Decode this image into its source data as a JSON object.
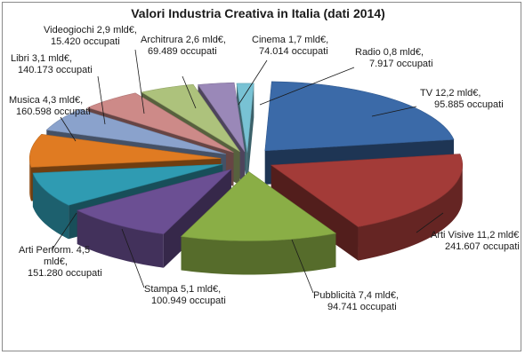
{
  "chart_data": {
    "type": "pie",
    "title": "Valori Industria Creativa in Italia (dati 2014)",
    "slices": [
      {
        "name": "TV",
        "value": 12.2,
        "value_text": "12,2 mld€,",
        "employees": "95.885 occupati",
        "color": "#3b6aa8"
      },
      {
        "name": "Arti Visive",
        "value": 11.2,
        "value_text": "11,2 mld€",
        "employees": "241.607 occupati",
        "color": "#a33b38"
      },
      {
        "name": "Pubblicità",
        "value": 7.4,
        "value_text": "7,4 mld€,",
        "employees": "94.741 occupati",
        "color": "#8aae46"
      },
      {
        "name": "Stampa",
        "value": 5.1,
        "value_text": "5,1 mld€,",
        "employees": "100.949 occupati",
        "color": "#6b4f93"
      },
      {
        "name": "Arti Perform.",
        "value": 4.5,
        "value_text": "4,5 mld€,",
        "employees": "151.280 occupati",
        "color": "#2f9bb2"
      },
      {
        "name": "Musica",
        "value": 4.3,
        "value_text": "4,3 mld€,",
        "employees": "160.598 occupati",
        "color": "#e07b22"
      },
      {
        "name": "Libri",
        "value": 3.1,
        "value_text": "3,1 mld€,",
        "employees": "140.173 occupati",
        "color": "#8aa2cc"
      },
      {
        "name": "Videogiochi",
        "value": 2.9,
        "value_text": "2,9 mld€,",
        "employees": "15.420 occupati",
        "color": "#cd8a88"
      },
      {
        "name": "Architrura",
        "value": 2.6,
        "value_text": "2,6 mld€,",
        "employees": "69.489 occupati",
        "color": "#adc27c"
      },
      {
        "name": "Cinema",
        "value": 1.7,
        "value_text": "1,7 mld€,",
        "employees": "74.014 occupati",
        "color": "#9a88b8"
      },
      {
        "name": "Radio",
        "value": 0.8,
        "value_text": "0,8 mld€,",
        "employees": "7.917 occupati",
        "color": "#78c2d4"
      }
    ]
  }
}
